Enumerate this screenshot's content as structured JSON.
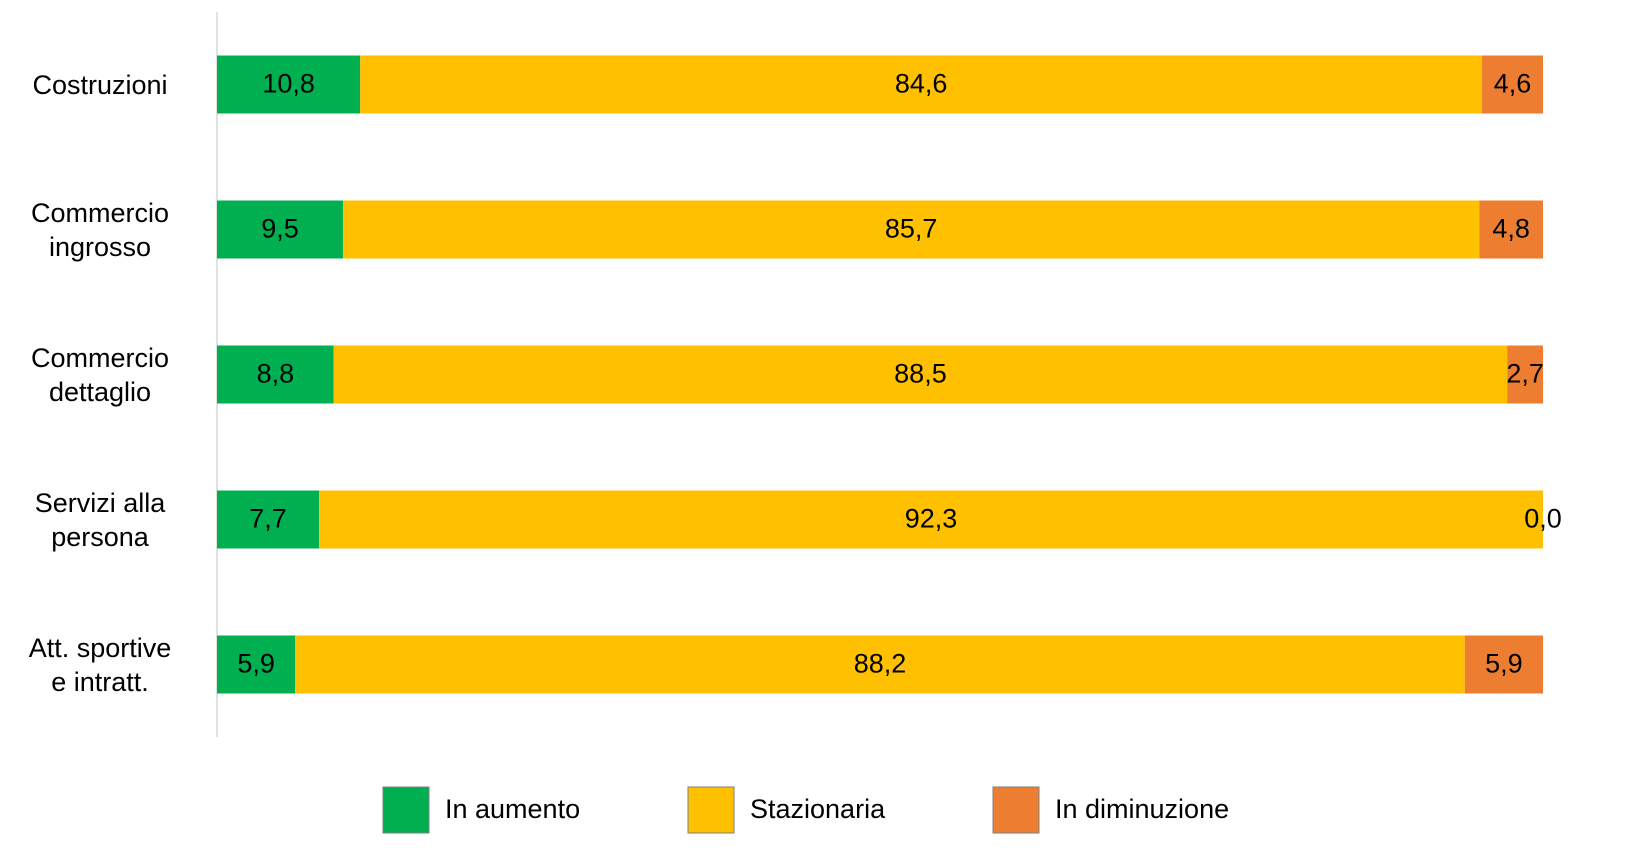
{
  "chart_data": {
    "type": "stacked_barh",
    "categories": [
      "Costruzioni",
      "Commercio\ningrosso",
      "Commercio\ndettaglio",
      "Servizi alla\npersona",
      "Att. sportive\ne intratt."
    ],
    "series": [
      {
        "name": "In aumento",
        "color": "#00b050",
        "values": [
          10.8,
          9.5,
          8.8,
          7.7,
          5.9
        ],
        "value_labels": [
          "10,8",
          "9,5",
          "8,8",
          "7,7",
          "5,9"
        ]
      },
      {
        "name": "Stazionaria",
        "color": "#ffc000",
        "values": [
          84.6,
          85.7,
          88.5,
          92.3,
          88.2
        ],
        "value_labels": [
          "84,6",
          "85,7",
          "88,5",
          "92,3",
          "88,2"
        ]
      },
      {
        "name": "In diminuzione",
        "color": "#ed7d31",
        "values": [
          4.6,
          4.8,
          2.7,
          0.0,
          5.9
        ],
        "value_labels": [
          "4,6",
          "4,8",
          "2,7",
          "0,0",
          "5,9"
        ]
      }
    ],
    "xlim": [
      0,
      100
    ],
    "legend": "bottom"
  }
}
